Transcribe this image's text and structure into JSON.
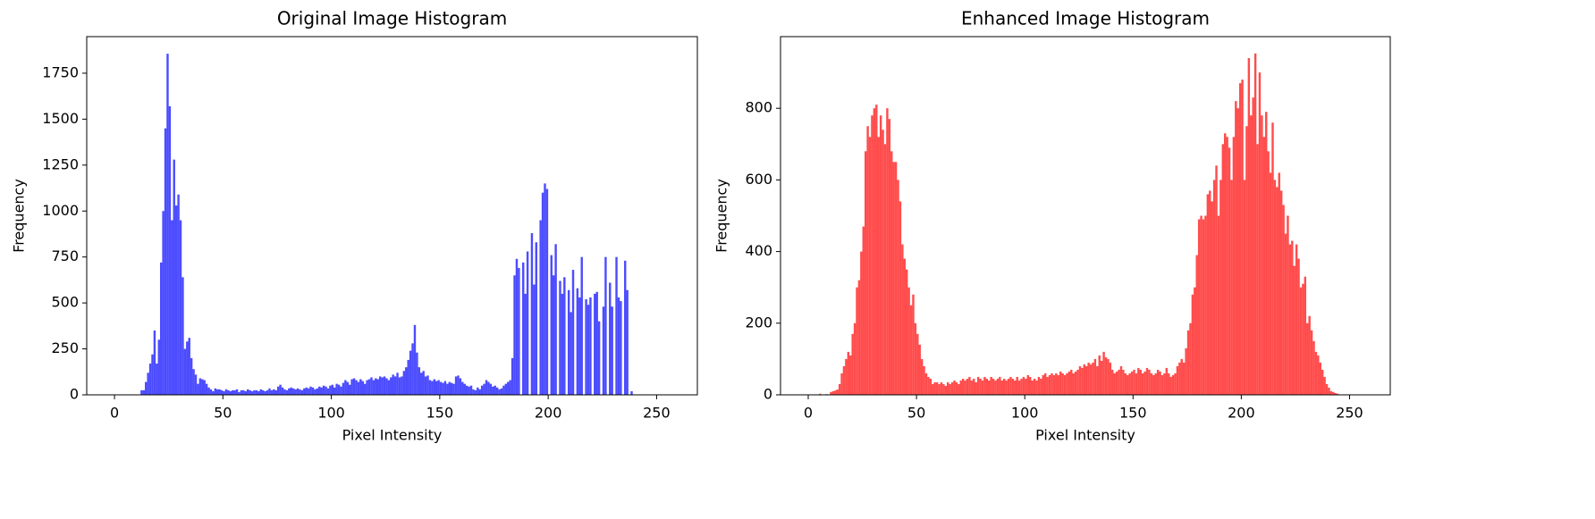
{
  "chart_data": [
    {
      "type": "histogram",
      "title": "Original Image Histogram",
      "xlabel": "Pixel Intensity",
      "ylabel": "Frequency",
      "color": "#0000ff",
      "alpha": 0.7,
      "bins": [
        0,
        1,
        2,
        3,
        4,
        5,
        6,
        7,
        8,
        9,
        10,
        11,
        12,
        13,
        14,
        15,
        16,
        17,
        18,
        19,
        20,
        21,
        22,
        23,
        24,
        25,
        26,
        27,
        28,
        29,
        30,
        31,
        32,
        33,
        34,
        35,
        36,
        37,
        38,
        39,
        40,
        41,
        42,
        43,
        44,
        45,
        46,
        47,
        48,
        49,
        50,
        51,
        52,
        53,
        54,
        55,
        56,
        57,
        58,
        59,
        60,
        61,
        62,
        63,
        64,
        65,
        66,
        67,
        68,
        69,
        70,
        71,
        72,
        73,
        74,
        75,
        76,
        77,
        78,
        79,
        80,
        81,
        82,
        83,
        84,
        85,
        86,
        87,
        88,
        89,
        90,
        91,
        92,
        93,
        94,
        95,
        96,
        97,
        98,
        99,
        100,
        101,
        102,
        103,
        104,
        105,
        106,
        107,
        108,
        109,
        110,
        111,
        112,
        113,
        114,
        115,
        116,
        117,
        118,
        119,
        120,
        121,
        122,
        123,
        124,
        125,
        126,
        127,
        128,
        129,
        130,
        131,
        132,
        133,
        134,
        135,
        136,
        137,
        138,
        139,
        140,
        141,
        142,
        143,
        144,
        145,
        146,
        147,
        148,
        149,
        150,
        151,
        152,
        153,
        154,
        155,
        156,
        157,
        158,
        159,
        160,
        161,
        162,
        163,
        164,
        165,
        166,
        167,
        168,
        169,
        170,
        171,
        172,
        173,
        174,
        175,
        176,
        177,
        178,
        179,
        180,
        181,
        182,
        183,
        184,
        185,
        186,
        187,
        188,
        189,
        190,
        191,
        192,
        193,
        194,
        195,
        196,
        197,
        198,
        199,
        200,
        201,
        202,
        203,
        204,
        205,
        206,
        207,
        208,
        209,
        210,
        211,
        212,
        213,
        214,
        215,
        216,
        217,
        218,
        219,
        220,
        221,
        222,
        223,
        224,
        225,
        226,
        227,
        228,
        229,
        230,
        231,
        232,
        233,
        234,
        235,
        236,
        237,
        238,
        239,
        240,
        241,
        242,
        243,
        244,
        245,
        246,
        247,
        248,
        249,
        250,
        251,
        252,
        253,
        254,
        255,
        256
      ],
      "counts": [
        0,
        0,
        0,
        0,
        0,
        0,
        0,
        0,
        0,
        0,
        0,
        0,
        25,
        25,
        70,
        120,
        170,
        220,
        350,
        170,
        300,
        720,
        1000,
        1450,
        1856,
        1570,
        950,
        1280,
        1030,
        1090,
        950,
        640,
        250,
        290,
        310,
        200,
        140,
        110,
        60,
        90,
        85,
        80,
        60,
        40,
        30,
        20,
        35,
        30,
        30,
        25,
        20,
        30,
        25,
        20,
        25,
        25,
        30,
        15,
        25,
        25,
        20,
        30,
        25,
        20,
        25,
        25,
        20,
        30,
        25,
        20,
        25,
        35,
        25,
        30,
        25,
        45,
        55,
        40,
        30,
        25,
        35,
        40,
        35,
        30,
        35,
        30,
        25,
        35,
        40,
        35,
        45,
        40,
        30,
        35,
        45,
        40,
        50,
        45,
        35,
        50,
        55,
        40,
        60,
        55,
        45,
        65,
        80,
        70,
        55,
        85,
        90,
        80,
        70,
        85,
        75,
        60,
        80,
        85,
        95,
        80,
        90,
        85,
        100,
        95,
        100,
        90,
        80,
        95,
        110,
        100,
        120,
        95,
        100,
        130,
        150,
        190,
        240,
        280,
        380,
        230,
        150,
        120,
        130,
        100,
        105,
        80,
        75,
        85,
        75,
        80,
        70,
        65,
        75,
        60,
        70,
        65,
        60,
        100,
        105,
        90,
        70,
        60,
        50,
        45,
        50,
        30,
        25,
        40,
        30,
        50,
        60,
        80,
        70,
        60,
        45,
        50,
        40,
        30,
        35,
        50,
        60,
        70,
        80,
        200,
        650,
        740,
        690,
        0,
        720,
        550,
        780,
        0,
        880,
        600,
        830,
        0,
        950,
        1100,
        1150,
        1120,
        0,
        760,
        650,
        820,
        0,
        620,
        550,
        640,
        0,
        570,
        450,
        680,
        0,
        580,
        530,
        750,
        0,
        520,
        490,
        530,
        0,
        550,
        560,
        400,
        0,
        480,
        750,
        0,
        610,
        480,
        0,
        750,
        530,
        510,
        0,
        730,
        570,
        0,
        20,
        0,
        0,
        0,
        0,
        0,
        0,
        0,
        0,
        0,
        0,
        0,
        0,
        0,
        0,
        0,
        0,
        0
      ],
      "xlim": [
        -12.8,
        268.8
      ],
      "ylim": [
        0,
        1949
      ],
      "xticks": [
        0,
        50,
        100,
        150,
        200,
        250
      ],
      "yticks": [
        0,
        250,
        500,
        750,
        1000,
        1250,
        1500,
        1750
      ]
    },
    {
      "type": "histogram",
      "title": "Enhanced Image Histogram",
      "xlabel": "Pixel Intensity",
      "ylabel": "Frequency",
      "color": "#ff0000",
      "alpha": 0.7,
      "bins": [
        0,
        1,
        2,
        3,
        4,
        5,
        6,
        7,
        8,
        9,
        10,
        11,
        12,
        13,
        14,
        15,
        16,
        17,
        18,
        19,
        20,
        21,
        22,
        23,
        24,
        25,
        26,
        27,
        28,
        29,
        30,
        31,
        32,
        33,
        34,
        35,
        36,
        37,
        38,
        39,
        40,
        41,
        42,
        43,
        44,
        45,
        46,
        47,
        48,
        49,
        50,
        51,
        52,
        53,
        54,
        55,
        56,
        57,
        58,
        59,
        60,
        61,
        62,
        63,
        64,
        65,
        66,
        67,
        68,
        69,
        70,
        71,
        72,
        73,
        74,
        75,
        76,
        77,
        78,
        79,
        80,
        81,
        82,
        83,
        84,
        85,
        86,
        87,
        88,
        89,
        90,
        91,
        92,
        93,
        94,
        95,
        96,
        97,
        98,
        99,
        100,
        101,
        102,
        103,
        104,
        105,
        106,
        107,
        108,
        109,
        110,
        111,
        112,
        113,
        114,
        115,
        116,
        117,
        118,
        119,
        120,
        121,
        122,
        123,
        124,
        125,
        126,
        127,
        128,
        129,
        130,
        131,
        132,
        133,
        134,
        135,
        136,
        137,
        138,
        139,
        140,
        141,
        142,
        143,
        144,
        145,
        146,
        147,
        148,
        149,
        150,
        151,
        152,
        153,
        154,
        155,
        156,
        157,
        158,
        159,
        160,
        161,
        162,
        163,
        164,
        165,
        166,
        167,
        168,
        169,
        170,
        171,
        172,
        173,
        174,
        175,
        176,
        177,
        178,
        179,
        180,
        181,
        182,
        183,
        184,
        185,
        186,
        187,
        188,
        189,
        190,
        191,
        192,
        193,
        194,
        195,
        196,
        197,
        198,
        199,
        200,
        201,
        202,
        203,
        204,
        205,
        206,
        207,
        208,
        209,
        210,
        211,
        212,
        213,
        214,
        215,
        216,
        217,
        218,
        219,
        220,
        221,
        222,
        223,
        224,
        225,
        226,
        227,
        228,
        229,
        230,
        231,
        232,
        233,
        234,
        235,
        236,
        237,
        238,
        239,
        240,
        241,
        242,
        243,
        244,
        245,
        246,
        247,
        248,
        249,
        250,
        251,
        252,
        253,
        254,
        255,
        256
      ],
      "counts": [
        0,
        0,
        0,
        0,
        0,
        3,
        0,
        0,
        2,
        0,
        8,
        10,
        12,
        15,
        30,
        60,
        80,
        100,
        120,
        110,
        170,
        200,
        300,
        320,
        400,
        470,
        680,
        750,
        720,
        780,
        800,
        810,
        720,
        780,
        740,
        700,
        800,
        770,
        680,
        650,
        650,
        600,
        540,
        420,
        380,
        350,
        300,
        250,
        280,
        200,
        170,
        140,
        100,
        80,
        60,
        50,
        45,
        30,
        35,
        35,
        30,
        35,
        30,
        25,
        35,
        30,
        35,
        40,
        35,
        30,
        40,
        45,
        40,
        45,
        50,
        40,
        45,
        35,
        50,
        45,
        40,
        50,
        45,
        40,
        50,
        45,
        40,
        45,
        50,
        40,
        45,
        40,
        45,
        50,
        45,
        40,
        50,
        40,
        45,
        50,
        45,
        55,
        50,
        40,
        45,
        40,
        50,
        45,
        55,
        60,
        50,
        55,
        60,
        55,
        60,
        55,
        65,
        60,
        55,
        60,
        65,
        70,
        60,
        65,
        70,
        80,
        75,
        85,
        80,
        90,
        85,
        90,
        100,
        80,
        110,
        95,
        120,
        105,
        100,
        90,
        70,
        60,
        65,
        70,
        80,
        70,
        60,
        55,
        60,
        65,
        70,
        60,
        75,
        70,
        60,
        65,
        75,
        70,
        60,
        55,
        60,
        70,
        65,
        55,
        60,
        75,
        60,
        50,
        55,
        60,
        80,
        90,
        100,
        90,
        130,
        180,
        200,
        280,
        300,
        390,
        490,
        500,
        490,
        500,
        560,
        570,
        540,
        600,
        640,
        500,
        600,
        700,
        730,
        720,
        690,
        600,
        720,
        820,
        800,
        870,
        880,
        600,
        750,
        940,
        780,
        830,
        953,
        700,
        900,
        780,
        720,
        790,
        680,
        620,
        760,
        600,
        580,
        620,
        570,
        530,
        450,
        500,
        420,
        430,
        360,
        420,
        380,
        300,
        310,
        330,
        200,
        220,
        180,
        150,
        120,
        110,
        90,
        70,
        50,
        30,
        20,
        10,
        8,
        5,
        3,
        0,
        0,
        0,
        0,
        0,
        0,
        0,
        0,
        0,
        0,
        0
      ],
      "xlim": [
        -12.8,
        268.8
      ],
      "ylim": [
        0,
        1000
      ],
      "xticks": [
        0,
        50,
        100,
        150,
        200,
        250
      ],
      "yticks": [
        0,
        200,
        400,
        600,
        800
      ]
    }
  ]
}
